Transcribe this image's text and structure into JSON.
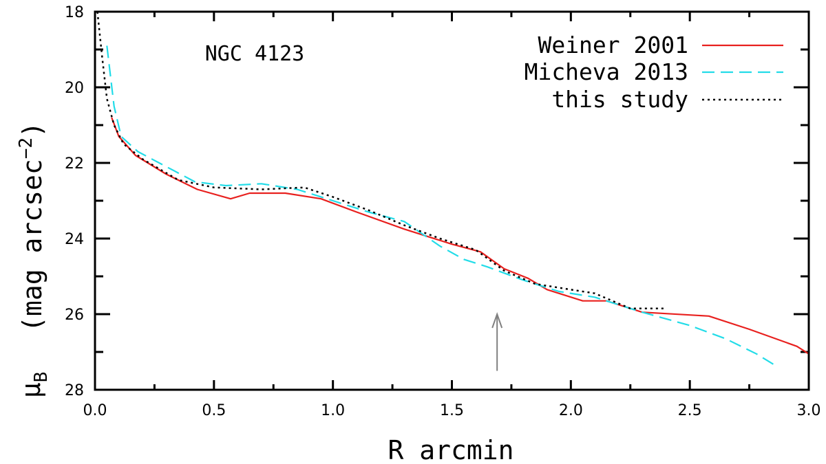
{
  "chart_data": {
    "type": "line",
    "annotation": "NGC 4123",
    "xlabel": "R arcmin",
    "ylabel": "μB (mag arcsec−2)",
    "ylabel_parts": {
      "mu": "μ",
      "mu_sub": "B",
      "paren_text": "(mag arcsec",
      "exp": "−2",
      "close": ")"
    },
    "xlim": [
      0.0,
      3.0
    ],
    "ylim": [
      28,
      18
    ],
    "y_inverted": true,
    "x_ticks": [
      "0.0",
      "0.5",
      "1.0",
      "1.5",
      "2.0",
      "2.5",
      "3.0"
    ],
    "x_tick_values": [
      0.0,
      0.5,
      1.0,
      1.5,
      2.0,
      2.5,
      3.0
    ],
    "y_ticks": [
      "18",
      "20",
      "22",
      "24",
      "26",
      "28"
    ],
    "y_tick_values": [
      18,
      20,
      22,
      24,
      26,
      28
    ],
    "legend_position": "top-right",
    "grid": false,
    "arrow_marker": {
      "x": 1.69,
      "y_from": 27.5,
      "y_to": 26.0,
      "color": "#808080"
    },
    "series": [
      {
        "name": "Weiner 2001",
        "color": "#e8201e",
        "style": "solid",
        "points": [
          [
            0.07,
            20.8
          ],
          [
            0.1,
            21.3
          ],
          [
            0.17,
            21.8
          ],
          [
            0.3,
            22.3
          ],
          [
            0.43,
            22.7
          ],
          [
            0.57,
            22.95
          ],
          [
            0.65,
            22.8
          ],
          [
            0.8,
            22.8
          ],
          [
            0.95,
            22.95
          ],
          [
            1.1,
            23.3
          ],
          [
            1.3,
            23.75
          ],
          [
            1.5,
            24.15
          ],
          [
            1.62,
            24.35
          ],
          [
            1.72,
            24.8
          ],
          [
            1.82,
            25.05
          ],
          [
            1.9,
            25.35
          ],
          [
            2.05,
            25.65
          ],
          [
            2.15,
            25.65
          ],
          [
            2.3,
            25.95
          ],
          [
            2.58,
            26.05
          ],
          [
            2.75,
            26.4
          ],
          [
            2.95,
            26.85
          ],
          [
            3.0,
            27.05
          ]
        ]
      },
      {
        "name": "Micheva 2013",
        "color": "#22dce8",
        "style": "dashed",
        "points": [
          [
            0.05,
            18.9
          ],
          [
            0.08,
            20.5
          ],
          [
            0.11,
            21.3
          ],
          [
            0.18,
            21.7
          ],
          [
            0.3,
            22.1
          ],
          [
            0.42,
            22.5
          ],
          [
            0.55,
            22.6
          ],
          [
            0.7,
            22.55
          ],
          [
            0.85,
            22.7
          ],
          [
            1.0,
            23.0
          ],
          [
            1.15,
            23.3
          ],
          [
            1.3,
            23.55
          ],
          [
            1.45,
            24.2
          ],
          [
            1.55,
            24.55
          ],
          [
            1.65,
            24.75
          ],
          [
            1.8,
            25.1
          ],
          [
            1.95,
            25.4
          ],
          [
            2.1,
            25.55
          ],
          [
            2.3,
            25.95
          ],
          [
            2.5,
            26.3
          ],
          [
            2.65,
            26.65
          ],
          [
            2.78,
            27.05
          ],
          [
            2.87,
            27.4
          ]
        ]
      },
      {
        "name": "this study",
        "color": "#000000",
        "style": "dotted",
        "points": [
          [
            0.01,
            18.0
          ],
          [
            0.03,
            19.2
          ],
          [
            0.05,
            20.3
          ],
          [
            0.08,
            21.0
          ],
          [
            0.12,
            21.5
          ],
          [
            0.2,
            21.9
          ],
          [
            0.35,
            22.45
          ],
          [
            0.5,
            22.65
          ],
          [
            0.7,
            22.7
          ],
          [
            0.88,
            22.65
          ],
          [
            1.0,
            22.9
          ],
          [
            1.15,
            23.25
          ],
          [
            1.3,
            23.65
          ],
          [
            1.45,
            24.0
          ],
          [
            1.6,
            24.3
          ],
          [
            1.72,
            24.85
          ],
          [
            1.85,
            25.2
          ],
          [
            2.0,
            25.35
          ],
          [
            2.1,
            25.45
          ],
          [
            2.25,
            25.85
          ],
          [
            2.4,
            25.85
          ]
        ]
      }
    ]
  }
}
